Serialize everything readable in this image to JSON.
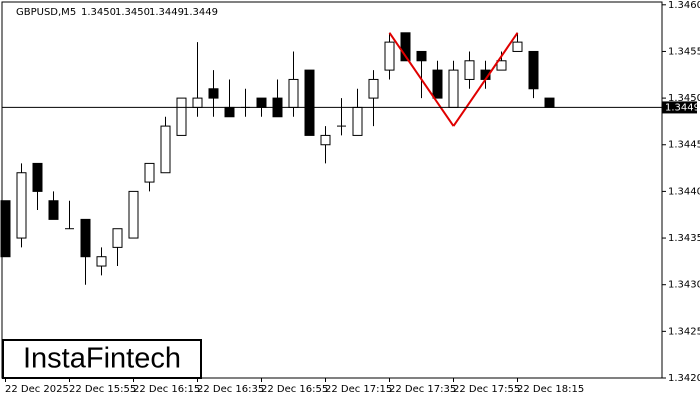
{
  "chart_data": {
    "type": "candlestick",
    "symbol": "GBPUSD,M5",
    "header_values": [
      "1.3450",
      "1.3450",
      "1.3449",
      "1.3449"
    ],
    "watermark": "InstaFintech",
    "categories": [
      "22 Dec 2025",
      null,
      null,
      null,
      "22 Dec 15:55",
      null,
      null,
      null,
      "22 Dec 16:15",
      null,
      null,
      null,
      "22 Dec 16:35",
      null,
      null,
      null,
      "22 Dec 16:55",
      null,
      null,
      null,
      "22 Dec 17:15",
      null,
      null,
      null,
      "22 Dec 17:35",
      null,
      null,
      null,
      "22 Dec 17:55",
      null,
      null,
      null,
      "22 Dec 18:15",
      null,
      null
    ],
    "open": [
      1.3439,
      1.3435,
      1.3443,
      1.3439,
      1.3436,
      1.3437,
      1.3432,
      1.3434,
      1.3435,
      1.3441,
      1.3442,
      1.3446,
      1.3449,
      1.3451,
      1.3449,
      1.3449,
      1.345,
      1.345,
      1.3449,
      1.3453,
      1.3445,
      1.3447,
      1.3446,
      1.345,
      1.3453,
      1.3457,
      1.3455,
      1.3453,
      1.3449,
      1.3452,
      1.3453,
      1.3453,
      1.3455,
      1.3455,
      1.345
    ],
    "high": [
      1.3439,
      1.3443,
      1.3443,
      1.344,
      1.3439,
      1.3437,
      1.3434,
      1.3436,
      1.344,
      1.3443,
      1.3448,
      1.345,
      1.3456,
      1.3453,
      1.3452,
      1.3451,
      1.345,
      1.3452,
      1.3455,
      1.3453,
      1.3447,
      1.345,
      1.3451,
      1.3453,
      1.3457,
      1.3457,
      1.3455,
      1.3454,
      1.3454,
      1.3455,
      1.3454,
      1.3455,
      1.3457,
      1.3455,
      1.345
    ],
    "low": [
      1.3433,
      1.3434,
      1.3438,
      1.3437,
      1.3436,
      1.343,
      1.3431,
      1.3432,
      1.3435,
      1.344,
      1.3442,
      1.3446,
      1.3448,
      1.3448,
      1.3448,
      1.3448,
      1.3448,
      1.3448,
      1.3448,
      1.3446,
      1.3443,
      1.3446,
      1.3446,
      1.3447,
      1.3452,
      1.3454,
      1.345,
      1.345,
      1.3449,
      1.3451,
      1.3451,
      1.3453,
      1.3455,
      1.345,
      1.3449
    ],
    "close": [
      1.3433,
      1.3442,
      1.344,
      1.3437,
      1.3436,
      1.3433,
      1.3433,
      1.3436,
      1.344,
      1.3443,
      1.3447,
      1.345,
      1.345,
      1.345,
      1.3448,
      1.3449,
      1.3449,
      1.3448,
      1.3452,
      1.3446,
      1.3446,
      1.3447,
      1.3449,
      1.3452,
      1.3456,
      1.3454,
      1.3454,
      1.345,
      1.3453,
      1.3454,
      1.3452,
      1.3454,
      1.3456,
      1.3451,
      1.3449
    ],
    "up_color": "#ffffff",
    "down_color": "#000000",
    "current_price": {
      "value": 1.3449,
      "label": "1.3449"
    },
    "pattern": {
      "color": "#e00000",
      "points": [
        [
          24,
          1.3457
        ],
        [
          28,
          1.3447
        ],
        [
          32,
          1.3457
        ]
      ]
    },
    "ylim": [
      1.342,
      1.34603
    ],
    "yticks": [
      {
        "value": 1.342,
        "label": "1.3420"
      },
      {
        "value": 1.3425,
        "label": "1.3425"
      },
      {
        "value": 1.343,
        "label": "1.3430"
      },
      {
        "value": 1.3435,
        "label": "1.3435"
      },
      {
        "value": 1.344,
        "label": "1.3440"
      },
      {
        "value": 1.3445,
        "label": "1.3445"
      },
      {
        "value": 1.345,
        "label": "1.3450"
      },
      {
        "value": 1.3455,
        "label": "1.3455"
      },
      {
        "value": 1.346,
        "label": "1.3460"
      }
    ]
  }
}
